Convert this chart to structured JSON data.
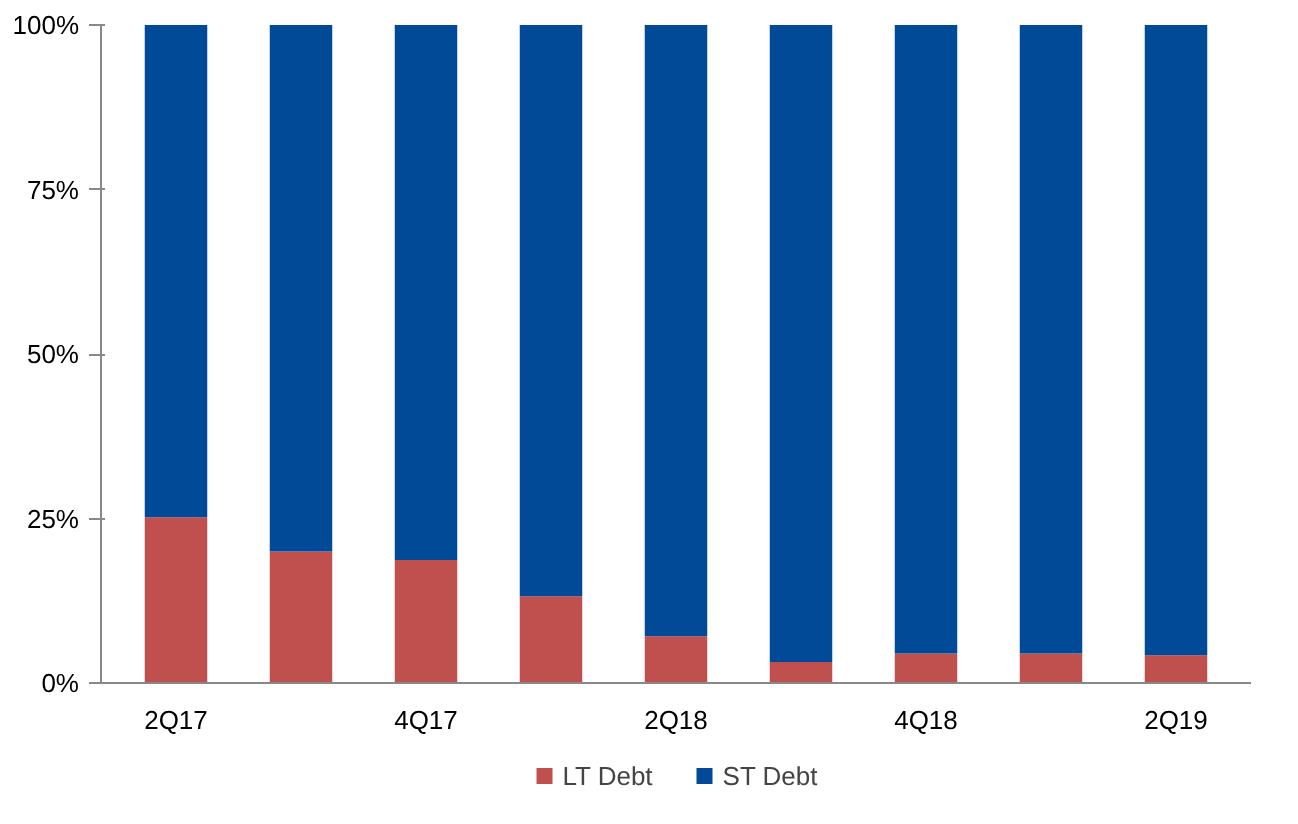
{
  "chart_data": {
    "type": "bar",
    "stacked": true,
    "categories": [
      "2Q17",
      null,
      "4Q17",
      null,
      "2Q18",
      null,
      "4Q18",
      null,
      "2Q19"
    ],
    "series": [
      {
        "name": "LT Debt",
        "color": "#c0504d",
        "values": [
          25.2,
          20,
          18.7,
          13.2,
          7.1,
          3.2,
          4.5,
          4.5,
          4.2
        ]
      },
      {
        "name": "ST Debt",
        "color": "#004a98",
        "values": [
          74.8,
          80,
          81.3,
          86.8,
          92.9,
          96.8,
          95.5,
          95.5,
          95.8
        ]
      }
    ],
    "ylim": [
      0,
      100
    ],
    "yticks": [
      {
        "value": 0,
        "label": "0%"
      },
      {
        "value": 25,
        "label": "25%"
      },
      {
        "value": 50,
        "label": "50%"
      },
      {
        "value": 75,
        "label": "75%"
      },
      {
        "value": 100,
        "label": "100%"
      }
    ],
    "grid": false,
    "legend": "bottom"
  }
}
